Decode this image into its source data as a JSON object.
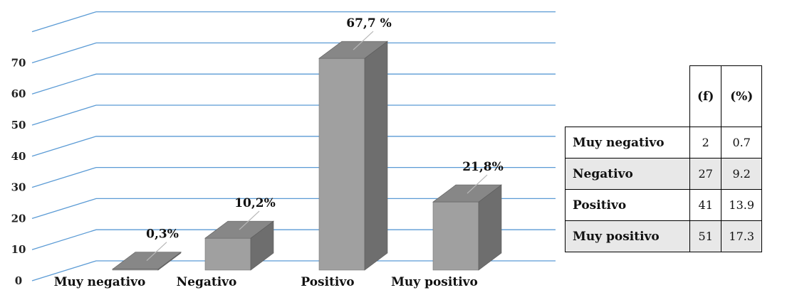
{
  "chart_data": {
    "type": "bar",
    "categories": [
      "Muy negativo",
      "Negativo",
      "Positivo",
      "Muy positivo"
    ],
    "values": [
      0.3,
      10.2,
      67.7,
      21.8
    ],
    "data_labels": [
      "0,3%",
      "10,2%",
      "67,7 %",
      "21,8%"
    ],
    "y_ticks": [
      "0",
      "10",
      "20",
      "30",
      "40",
      "50",
      "60",
      "70"
    ],
    "ylim": [
      0,
      80
    ],
    "grid": true,
    "style": "3d-column",
    "colors": {
      "front": "#a0a0a0",
      "side": "#6e6e6e",
      "top": "#878787",
      "grid": "#5b9bd5"
    }
  },
  "table": {
    "headers": [
      "",
      "(f)",
      "(%)"
    ],
    "rows": [
      {
        "label": "Muy negativo",
        "f": "2",
        "pct": "0.7"
      },
      {
        "label": "Negativo",
        "f": "27",
        "pct": "9.2"
      },
      {
        "label": "Positivo",
        "f": "41",
        "pct": "13.9"
      },
      {
        "label": "Muy positivo",
        "f": "51",
        "pct": "17.3"
      }
    ]
  }
}
